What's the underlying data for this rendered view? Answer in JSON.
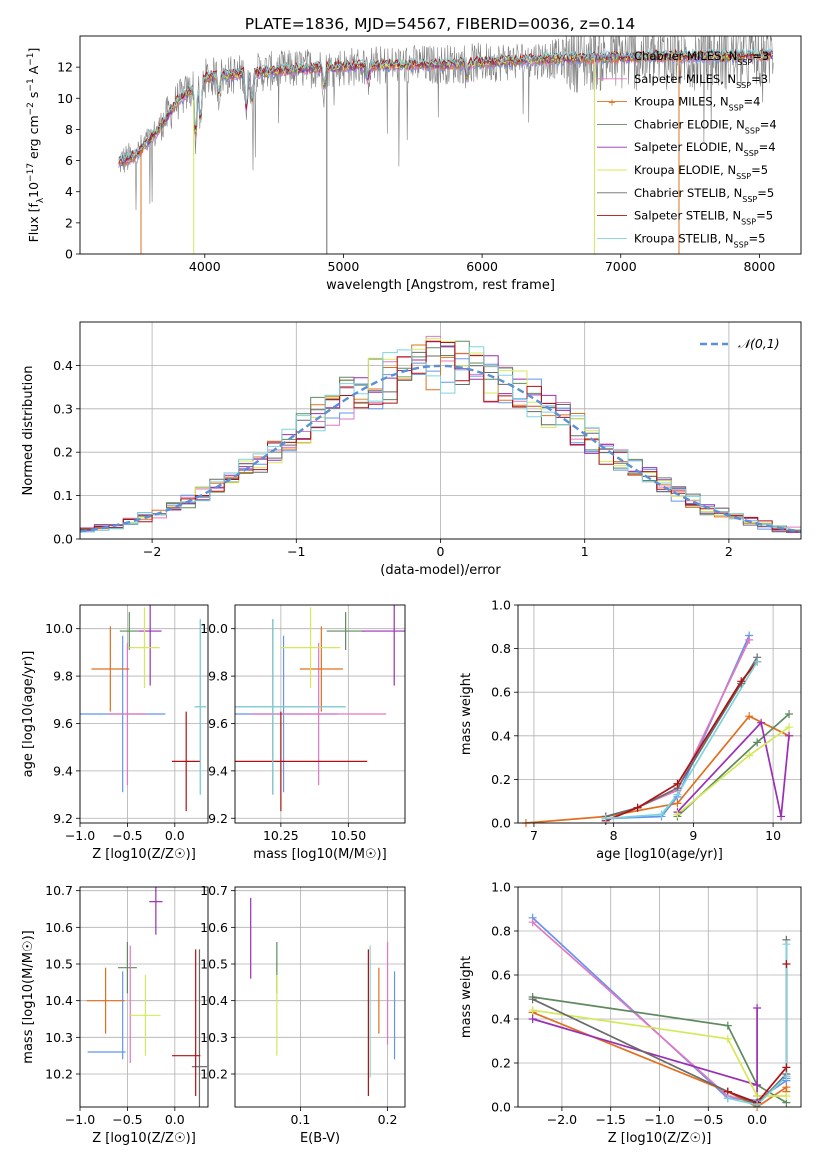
{
  "figure_title": "PLATE=1836, MJD=54567, FIBERID=0036, z=0.14",
  "colors": {
    "Chabrier MILES": "#6495ed",
    "Salpeter MILES": "#e377c2",
    "Kroupa MILES": "#e07020",
    "Chabrier ELODIE": "#5f8a5f",
    "Salpeter ELODIE": "#9a2fb5",
    "Kroupa ELODIE": "#d4e85a",
    "Chabrier STELIB": "#6a6a6a",
    "Salpeter STELIB": "#b01010",
    "Kroupa STELIB": "#7fd3dd"
  },
  "chart_data": [
    {
      "id": "spectrum",
      "type": "line",
      "title": "PLATE=1836, MJD=54567, FIBERID=0036, z=0.14",
      "xlabel": "wavelength [Angstrom, rest frame]",
      "ylabel": "Flux [fλ10⁻¹⁷ erg cm⁻² s⁻¹ A⁻¹]",
      "xlim": [
        3100,
        8300
      ],
      "ylim": [
        0,
        14
      ],
      "xticks": [
        4000,
        5000,
        6000,
        7000,
        8000
      ],
      "yticks": [
        0,
        2,
        4,
        6,
        8,
        10,
        12
      ],
      "grid": false,
      "legend_position": "upper-right",
      "legend": [
        {
          "label": "Chabrier MILES, N",
          "sub": "SSP",
          "suffix": "=3"
        },
        {
          "label": "Salpeter MILES, N",
          "sub": "SSP",
          "suffix": "=3"
        },
        {
          "label": "Kroupa MILES, N",
          "sub": "SSP",
          "suffix": "=4"
        },
        {
          "label": "Chabrier ELODIE, N",
          "sub": "SSP",
          "suffix": "=4"
        },
        {
          "label": "Salpeter ELODIE, N",
          "sub": "SSP",
          "suffix": "=4"
        },
        {
          "label": "Kroupa ELODIE, N",
          "sub": "SSP",
          "suffix": "=5"
        },
        {
          "label": "Chabrier STELIB, N",
          "sub": "SSP",
          "suffix": "=5"
        },
        {
          "label": "Salpeter STELIB, N",
          "sub": "SSP",
          "suffix": "=5"
        },
        {
          "label": "Kroupa STELIB, N",
          "sub": "SSP",
          "suffix": "=5"
        }
      ],
      "continuum": [
        [
          3380,
          5.9
        ],
        [
          3500,
          6.3
        ],
        [
          3650,
          7.8
        ],
        [
          3800,
          9.8
        ],
        [
          4000,
          11.3
        ],
        [
          4300,
          11.6
        ],
        [
          4700,
          11.9
        ],
        [
          5200,
          12.1
        ],
        [
          5800,
          12.2
        ],
        [
          6400,
          12.5
        ],
        [
          6900,
          12.6
        ],
        [
          7400,
          12.7
        ],
        [
          7800,
          12.7
        ],
        [
          8100,
          12.8
        ]
      ],
      "absorption_features": [
        [
          3934,
          7.0
        ],
        [
          3969,
          8.0
        ],
        [
          4102,
          10.2
        ],
        [
          4300,
          8.9
        ],
        [
          4340,
          9.4
        ],
        [
          4861,
          10.6
        ],
        [
          5175,
          11.1
        ],
        [
          5890,
          11.4
        ]
      ],
      "model_dropouts": [
        [
          3540,
          0,
          "Kroupa MILES"
        ],
        [
          3920,
          0,
          "Kroupa ELODIE"
        ],
        [
          4880,
          0,
          "Chabrier STELIB"
        ],
        [
          6810,
          0,
          "Kroupa ELODIE"
        ],
        [
          7420,
          0,
          "Kroupa MILES"
        ]
      ]
    },
    {
      "id": "residuals",
      "type": "histogram",
      "xlabel": "(data-model)/error",
      "ylabel": "Normed distribution",
      "xlim": [
        -2.5,
        2.5
      ],
      "ylim": [
        0,
        0.5
      ],
      "xticks": [
        -2,
        -1,
        0,
        1,
        2
      ],
      "yticks": [
        0.0,
        0.1,
        0.2,
        0.3,
        0.4
      ],
      "grid": true,
      "legend_position": "upper-right",
      "reference_curve": {
        "label": "𝒩(0,1)",
        "mean": 0,
        "sd": 1
      },
      "bin_width": 0.1
    },
    {
      "id": "age_vs_Z",
      "type": "errorbar",
      "xlabel": "Z [log10(Z/Z☉)]",
      "ylabel": "age  [log10(age/yr)]",
      "xlim": [
        -1.0,
        0.35
      ],
      "ylim": [
        9.18,
        10.1
      ],
      "xticks": [
        -1.0,
        -0.5,
        0.0
      ],
      "yticks": [
        9.2,
        9.4,
        9.6,
        9.8,
        10.0
      ],
      "grid": true,
      "points": [
        {
          "model": "Chabrier MILES",
          "x": -0.55,
          "xerr": 0.45,
          "y": 9.64,
          "yerr": 0.33
        },
        {
          "model": "Salpeter MILES",
          "x": -0.5,
          "xerr": 0.2,
          "y": 9.64,
          "yerr": 0.3
        },
        {
          "model": "Kroupa MILES",
          "x": -0.68,
          "xerr": 0.2,
          "y": 9.83,
          "yerr": 0.18
        },
        {
          "model": "Chabrier ELODIE",
          "x": -0.48,
          "xerr": 0.1,
          "y": 9.99,
          "yerr": 0.08
        },
        {
          "model": "Salpeter ELODIE",
          "x": -0.26,
          "xerr": 0.12,
          "y": 9.99,
          "yerr": 0.23
        },
        {
          "model": "Kroupa ELODIE",
          "x": -0.32,
          "xerr": 0.16,
          "y": 9.92,
          "yerr": 0.17
        },
        {
          "model": "Chabrier STELIB",
          "x": 0.27,
          "xerr": 0.06,
          "y": 9.67,
          "yerr": 0.37
        },
        {
          "model": "Salpeter STELIB",
          "x": 0.12,
          "xerr": 0.15,
          "y": 9.44,
          "yerr": 0.21
        },
        {
          "model": "Kroupa STELIB",
          "x": 0.27,
          "xerr": 0.06,
          "y": 9.67,
          "yerr": 0.37
        }
      ]
    },
    {
      "id": "age_vs_mass",
      "type": "errorbar",
      "xlabel": "mass [log10(M/M☉)]",
      "xlim": [
        10.08,
        10.71
      ],
      "ylim": [
        9.18,
        10.1
      ],
      "xticks": [
        10.25,
        10.5
      ],
      "xticklabels": [
        "10.25",
        "10.50"
      ],
      "yticks": [
        9.2,
        9.4,
        9.6,
        9.8,
        10.0
      ],
      "grid": true,
      "points": [
        {
          "model": "Chabrier MILES",
          "x": 10.26,
          "xerr": 0.2,
          "y": 9.64,
          "yerr": 0.33
        },
        {
          "model": "Salpeter MILES",
          "x": 10.39,
          "xerr": 0.25,
          "y": 9.64,
          "yerr": 0.3
        },
        {
          "model": "Kroupa MILES",
          "x": 10.4,
          "xerr": 0.08,
          "y": 9.83,
          "yerr": 0.18
        },
        {
          "model": "Chabrier ELODIE",
          "x": 10.49,
          "xerr": 0.07,
          "y": 9.99,
          "yerr": 0.08
        },
        {
          "model": "Salpeter ELODIE",
          "x": 10.67,
          "xerr": 0.12,
          "y": 9.99,
          "yerr": 0.23
        },
        {
          "model": "Kroupa ELODIE",
          "x": 10.36,
          "xerr": 0.11,
          "y": 9.92,
          "yerr": 0.17
        },
        {
          "model": "Chabrier STELIB",
          "x": 10.22,
          "xerr": 0.27,
          "y": 9.67,
          "yerr": 0.37
        },
        {
          "model": "Salpeter STELIB",
          "x": 10.25,
          "xerr": 0.32,
          "y": 9.44,
          "yerr": 0.21
        },
        {
          "model": "Kroupa STELIB",
          "x": 10.22,
          "xerr": 0.27,
          "y": 9.67,
          "yerr": 0.37
        }
      ]
    },
    {
      "id": "massweight_vs_age",
      "type": "line",
      "xlabel": "age  [log10(age/yr)]",
      "ylabel": "mass weight",
      "xlim": [
        6.8,
        10.35
      ],
      "ylim": [
        0,
        1.0
      ],
      "xticks": [
        7,
        8,
        9,
        10
      ],
      "yticks": [
        0.0,
        0.2,
        0.4,
        0.6,
        0.8,
        1.0
      ],
      "grid": true,
      "series": [
        {
          "model": "Chabrier MILES",
          "x": [
            7.9,
            8.6,
            8.8,
            9.7
          ],
          "y": [
            0.02,
            0.03,
            0.12,
            0.86
          ]
        },
        {
          "model": "Salpeter MILES",
          "x": [
            7.9,
            8.8,
            9.7
          ],
          "y": [
            0.01,
            0.15,
            0.84
          ]
        },
        {
          "model": "Kroupa MILES",
          "x": [
            6.9,
            7.9,
            8.8,
            9.7,
            10.2
          ],
          "y": [
            0.0,
            0.03,
            0.09,
            0.49,
            0.4
          ]
        },
        {
          "model": "Chabrier ELODIE",
          "x": [
            8.8,
            9.8,
            10.2
          ],
          "y": [
            0.03,
            0.37,
            0.5
          ]
        },
        {
          "model": "Salpeter ELODIE",
          "x": [
            8.8,
            9.85,
            10.1,
            10.2
          ],
          "y": [
            0.05,
            0.46,
            0.03,
            0.4
          ]
        },
        {
          "model": "Kroupa ELODIE",
          "x": [
            8.8,
            9.7,
            10.2
          ],
          "y": [
            0.04,
            0.31,
            0.44
          ]
        },
        {
          "model": "Chabrier STELIB",
          "x": [
            7.9,
            8.3,
            8.8,
            9.6,
            9.8
          ],
          "y": [
            0.03,
            0.07,
            0.16,
            0.64,
            0.76
          ]
        },
        {
          "model": "Salpeter STELIB",
          "x": [
            7.9,
            8.3,
            8.8,
            9.6,
            9.8
          ],
          "y": [
            0.01,
            0.07,
            0.18,
            0.65,
            0.74
          ]
        },
        {
          "model": "Kroupa STELIB",
          "x": [
            7.9,
            8.6,
            8.8,
            9.8
          ],
          "y": [
            0.02,
            0.04,
            0.13,
            0.74
          ]
        }
      ]
    },
    {
      "id": "mass_vs_Z",
      "type": "errorbar",
      "xlabel": "Z [log10(Z/Z☉)]",
      "ylabel": "mass [log10(M/M☉)]",
      "xlim": [
        -1.0,
        0.35
      ],
      "ylim": [
        10.11,
        10.71
      ],
      "xticks": [
        -1.0,
        -0.5,
        0.0
      ],
      "yticks": [
        10.2,
        10.3,
        10.4,
        10.5,
        10.6,
        10.7
      ],
      "grid": true,
      "points": [
        {
          "model": "Chabrier MILES",
          "x": -0.72,
          "xerr": 0.2,
          "y": 10.26,
          "yerr": 0.0
        },
        {
          "model": "Chabrier MILES ",
          "x": -0.55,
          "xerr": 0.0,
          "y": 10.36,
          "yerr": 0.12
        },
        {
          "model": "Kroupa MILES",
          "x": -0.73,
          "xerr": 0.2,
          "y": 10.4,
          "yerr": 0.09
        },
        {
          "model": "Chabrier ELODIE",
          "x": -0.5,
          "xerr": 0.1,
          "y": 10.49,
          "yerr": 0.07
        },
        {
          "model": "Salpeter MILES",
          "x": -0.47,
          "xerr": 0.0,
          "y": 10.39,
          "yerr": 0.16
        },
        {
          "model": "Salpeter ELODIE",
          "x": -0.2,
          "xerr": 0.07,
          "y": 10.67,
          "yerr": 0.09
        },
        {
          "model": "Kroupa ELODIE",
          "x": -0.31,
          "xerr": 0.16,
          "y": 10.36,
          "yerr": 0.11
        },
        {
          "model": "Chabrier STELIB",
          "x": 0.26,
          "xerr": 0.08,
          "y": 10.22,
          "yerr": 0.32
        },
        {
          "model": "Salpeter STELIB",
          "x": 0.12,
          "xerr": 0.15,
          "y": 10.25,
          "yerr": 0.0
        },
        {
          "model": "Salpeter STELIB ",
          "x": 0.22,
          "xerr": 0.0,
          "y": 10.34,
          "yerr": 0.2
        }
      ]
    },
    {
      "id": "mass_vs_ebv",
      "type": "errorbar",
      "xlabel": "E(B-V)",
      "xlim": [
        0.025,
        0.22
      ],
      "ylim": [
        10.11,
        10.71
      ],
      "xticks": [
        0.1,
        0.2
      ],
      "yticks": [
        10.2,
        10.3,
        10.4,
        10.5,
        10.6,
        10.7
      ],
      "grid": true,
      "points": [
        {
          "model": "Salpeter ELODIE",
          "x": 0.043,
          "y": 10.57,
          "yerr": 0.11
        },
        {
          "model": "Chabrier ELODIE",
          "x": 0.073,
          "y": 10.49,
          "yerr": 0.07
        },
        {
          "model": "Kroupa ELODIE",
          "x": 0.073,
          "y": 10.36,
          "yerr": 0.11
        },
        {
          "model": "Salpeter STELIB",
          "x": 0.178,
          "y": 10.34,
          "yerr": 0.2
        },
        {
          "model": "Kroupa STELIB",
          "x": 0.18,
          "y": 10.37,
          "yerr": 0.18
        },
        {
          "model": "Kroupa MILES",
          "x": 0.19,
          "y": 10.4,
          "yerr": 0.09
        },
        {
          "model": "Salpeter MILES",
          "x": 0.2,
          "y": 10.42,
          "yerr": 0.14
        },
        {
          "model": "Chabrier MILES",
          "x": 0.208,
          "y": 10.36,
          "yerr": 0.12
        }
      ]
    },
    {
      "id": "massweight_vs_Z",
      "type": "line",
      "xlabel": "Z [log10(Z/Z☉)]",
      "ylabel": "mass weight",
      "xlim": [
        -2.45,
        0.45
      ],
      "ylim": [
        0,
        1.0
      ],
      "xticks": [
        -2.0,
        -1.5,
        -1.0,
        -0.5,
        0.0
      ],
      "yticks": [
        0.0,
        0.2,
        0.4,
        0.6,
        0.8,
        1.0
      ],
      "grid": true,
      "series": [
        {
          "model": "Chabrier MILES",
          "x": [
            -2.3,
            -0.3,
            0.0,
            0.3,
            0.3
          ],
          "y": [
            0.86,
            0.04,
            0.03,
            0.12,
            0.13
          ]
        },
        {
          "model": "Salpeter MILES",
          "x": [
            -2.3,
            -0.3,
            0.0,
            0.3
          ],
          "y": [
            0.84,
            0.05,
            0.02,
            0.14
          ]
        },
        {
          "model": "Kroupa MILES",
          "x": [
            -2.3,
            -0.3,
            0.0,
            0.3,
            0.3
          ],
          "y": [
            0.43,
            0.07,
            0.0,
            0.09,
            0.07
          ]
        },
        {
          "model": "Chabrier ELODIE",
          "x": [
            -2.3,
            -0.3,
            0.0,
            0.3
          ],
          "y": [
            0.5,
            0.37,
            0.1,
            0.02
          ]
        },
        {
          "model": "Salpeter ELODIE",
          "x": [
            -2.3,
            0.0,
            0.0,
            0.0
          ],
          "y": [
            0.4,
            0.1,
            0.45,
            0.05
          ]
        },
        {
          "model": "Kroupa ELODIE",
          "x": [
            -2.3,
            -0.3,
            0.0,
            0.3
          ],
          "y": [
            0.44,
            0.31,
            0.05,
            0.05
          ]
        },
        {
          "model": "Chabrier STELIB",
          "x": [
            -2.3,
            -0.3,
            0.0,
            0.3,
            0.3
          ],
          "y": [
            0.49,
            0.07,
            0.01,
            0.15,
            0.76
          ]
        },
        {
          "model": "Salpeter STELIB",
          "x": [
            -0.3,
            0.0,
            0.3,
            0.3
          ],
          "y": [
            0.07,
            0.02,
            0.18,
            0.65
          ]
        },
        {
          "model": "Kroupa STELIB",
          "x": [
            -0.3,
            0.0,
            0.3,
            0.3
          ],
          "y": [
            0.04,
            0.01,
            0.14,
            0.74
          ]
        }
      ]
    }
  ]
}
